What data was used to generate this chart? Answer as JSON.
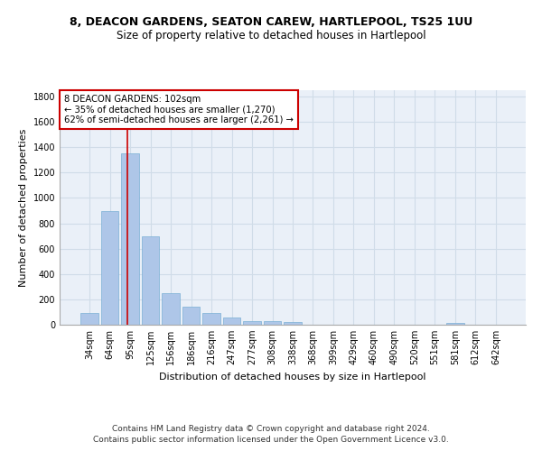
{
  "title1": "8, DEACON GARDENS, SEATON CAREW, HARTLEPOOL, TS25 1UU",
  "title2": "Size of property relative to detached houses in Hartlepool",
  "xlabel": "Distribution of detached houses by size in Hartlepool",
  "ylabel": "Number of detached properties",
  "categories": [
    "34sqm",
    "64sqm",
    "95sqm",
    "125sqm",
    "156sqm",
    "186sqm",
    "216sqm",
    "247sqm",
    "277sqm",
    "308sqm",
    "338sqm",
    "368sqm",
    "399sqm",
    "429sqm",
    "460sqm",
    "490sqm",
    "520sqm",
    "551sqm",
    "581sqm",
    "612sqm",
    "642sqm"
  ],
  "values": [
    90,
    900,
    1350,
    700,
    250,
    140,
    90,
    55,
    30,
    25,
    20,
    0,
    0,
    0,
    0,
    0,
    0,
    0,
    15,
    0,
    0
  ],
  "bar_color": "#aec6e8",
  "bar_edge_color": "#7aafd4",
  "vline_color": "#cc0000",
  "annotation_text": "8 DEACON GARDENS: 102sqm\n← 35% of detached houses are smaller (1,270)\n62% of semi-detached houses are larger (2,261) →",
  "annotation_box_color": "#ffffff",
  "annotation_box_edge_color": "#cc0000",
  "ylim": [
    0,
    1850
  ],
  "yticks": [
    0,
    200,
    400,
    600,
    800,
    1000,
    1200,
    1400,
    1600,
    1800
  ],
  "grid_color": "#d0dce8",
  "bg_color": "#eaf0f8",
  "footer1": "Contains HM Land Registry data © Crown copyright and database right 2024.",
  "footer2": "Contains public sector information licensed under the Open Government Licence v3.0.",
  "title1_fontsize": 9,
  "title2_fontsize": 8.5,
  "axis_label_fontsize": 8,
  "tick_fontsize": 7,
  "annotation_fontsize": 7.2,
  "footer_fontsize": 6.5
}
